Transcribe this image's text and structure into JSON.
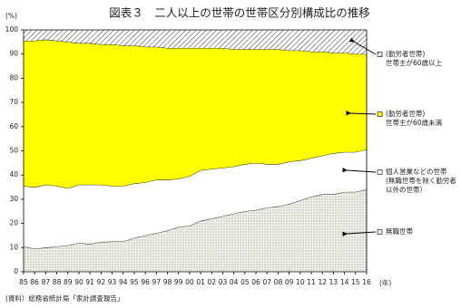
{
  "chart_data": {
    "type": "stacked_area",
    "title": "図表３　二人以上の世帯の世帯区分別構成比の推移",
    "y_label": "(%)",
    "x_label": "(年)",
    "source": "(資料）総務省統計局「家計調査報告」",
    "categories": [
      "85",
      "86",
      "87",
      "88",
      "89",
      "90",
      "91",
      "92",
      "93",
      "94",
      "95",
      "96",
      "97",
      "98",
      "99",
      "00",
      "01",
      "02",
      "03",
      "04",
      "05",
      "06",
      "07",
      "08",
      "09",
      "10",
      "11",
      "12",
      "13",
      "14",
      "15",
      "16"
    ],
    "ylim": [
      0,
      100
    ],
    "yticks": [
      0,
      10,
      20,
      30,
      40,
      50,
      60,
      70,
      80,
      90,
      100
    ],
    "series": [
      {
        "name": [
          "無職世帯"
        ],
        "color": "#9a9a9a",
        "pattern": "dots",
        "values": [
          10.5,
          9.5,
          10,
          10.5,
          10.8,
          12,
          11.5,
          12.3,
          12.5,
          12.5,
          14,
          15,
          16,
          17,
          18.5,
          19,
          21,
          22,
          23,
          24,
          25,
          25.5,
          26.5,
          27,
          28,
          29.5,
          31,
          32,
          32,
          33,
          33,
          34
        ]
      },
      {
        "name": [
          "個人営業などの世帯",
          "(無職世帯を除く勤労者",
          "以外の世帯）"
        ],
        "color": "#ffffff",
        "pattern": "solid",
        "values": [
          25,
          25.5,
          26,
          25,
          23.7,
          24,
          24.5,
          23.7,
          23,
          23,
          22.5,
          22,
          22,
          21,
          20,
          20.5,
          21,
          20.5,
          20,
          19.5,
          19.5,
          19.5,
          18,
          17.5,
          17.5,
          16.5,
          16,
          16,
          17,
          16.5,
          16.5,
          16.5
        ]
      },
      {
        "name": [
          "(勤労者世帯)",
          "世帯主が60歳未満"
        ],
        "color": "#ffff00",
        "pattern": "solid",
        "values": [
          60,
          60.5,
          60,
          60,
          60.5,
          58.5,
          58.5,
          58,
          58.5,
          58,
          57,
          56,
          55,
          54.5,
          54,
          53,
          50.5,
          50,
          49.5,
          48.5,
          47.5,
          47,
          47.5,
          47.5,
          46,
          45.5,
          44,
          43,
          41.5,
          41,
          40.5,
          39.5
        ]
      },
      {
        "name": [
          "(勤労者世帯)",
          "世帯主が60歳以上"
        ],
        "color": "#333333",
        "pattern": "hatch",
        "values": [
          4.5,
          4.5,
          4,
          4.5,
          5,
          5.5,
          5.5,
          6,
          6,
          6.5,
          6.5,
          7,
          7,
          7.5,
          7.5,
          7.5,
          7.5,
          7.5,
          7.5,
          8,
          8,
          8,
          8,
          8,
          8.5,
          8.5,
          9,
          9,
          9.5,
          9.5,
          10,
          10
        ]
      }
    ]
  }
}
